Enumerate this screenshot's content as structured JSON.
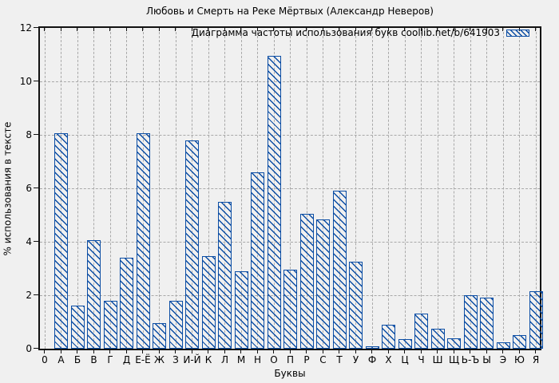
{
  "page": {
    "background": "#f0f0f0"
  },
  "colors": {
    "bar": "#0b4da4",
    "grid": "#a9a9a9",
    "axis": "#111111",
    "text": "#000000",
    "background": "#f0f0f0"
  },
  "chart_data": {
    "type": "bar",
    "title": "Любовь и Смерть на Реке Мёртвых (Александр Неверов)",
    "legend": "Диаграмма частоты использования букв coollib.net/b/641903",
    "legend_position": "top-right",
    "xlabel": "Буквы",
    "ylabel": "% использования в тексте",
    "ylim": [
      0,
      12
    ],
    "yticks": [
      0,
      2,
      4,
      6,
      8,
      10,
      12
    ],
    "grid": true,
    "bar_style": "unfilled with blue diagonal hatch",
    "categories": [
      "0",
      "А",
      "Б",
      "В",
      "Г",
      "Д",
      "Е-Ё",
      "Ж",
      "З",
      "И-Й",
      "К",
      "Л",
      "М",
      "Н",
      "О",
      "П",
      "Р",
      "С",
      "Т",
      "У",
      "Ф",
      "Х",
      "Ц",
      "Ч",
      "Ш",
      "Щ",
      "Ь-Ъ",
      "Ы",
      "Э",
      "Ю",
      "Я"
    ],
    "values": [
      0,
      8.05,
      1.6,
      4.05,
      1.8,
      3.4,
      8.05,
      0.95,
      1.8,
      7.8,
      3.45,
      5.5,
      2.9,
      6.6,
      10.95,
      2.95,
      5.05,
      4.85,
      5.9,
      3.25,
      0.1,
      0.9,
      0.35,
      1.3,
      0.75,
      0.4,
      2.0,
      1.9,
      0.25,
      0.5,
      2.15
    ]
  }
}
